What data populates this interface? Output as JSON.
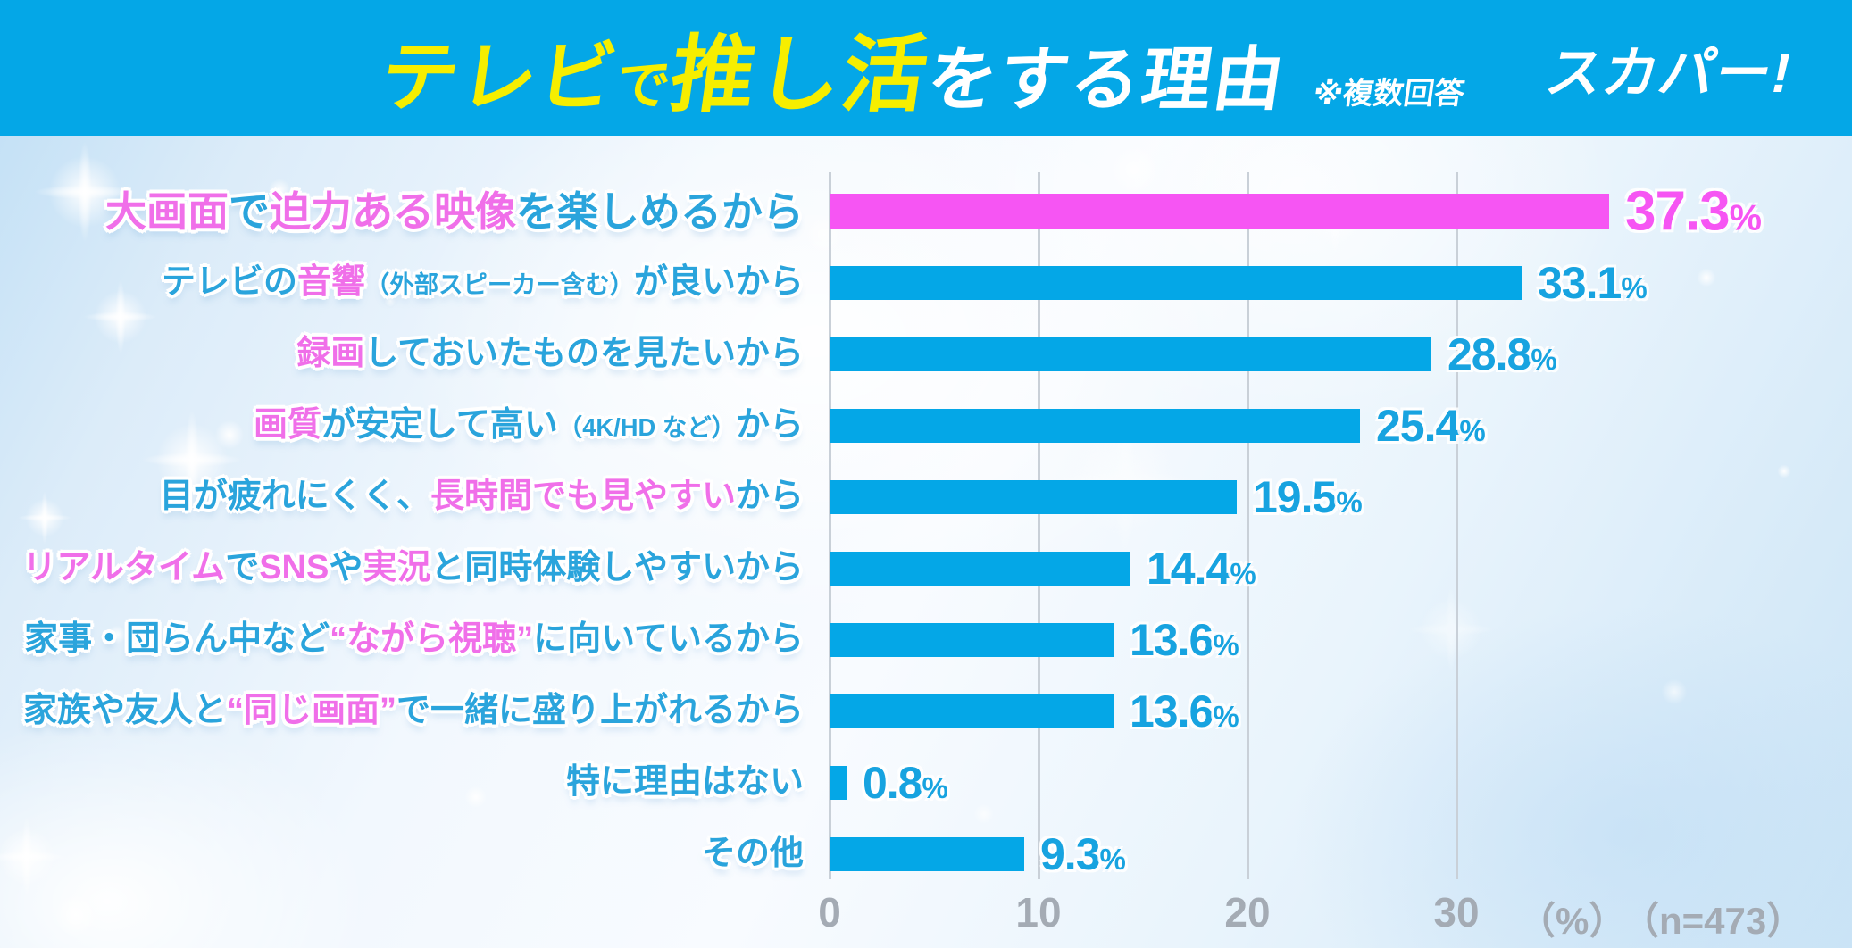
{
  "header": {
    "title_tv": "テレビ",
    "title_de": "で",
    "title_oshikatsu": "推し活",
    "title_rest": "をする理由",
    "note": "※複数回答",
    "logo": "スカパー!",
    "bg_color": "#04a7e7",
    "highlight_color": "#f6ee00"
  },
  "chart_data": {
    "type": "bar",
    "orientation": "horizontal",
    "title": "テレビで推し活をする理由",
    "unit_label": "（%）",
    "sample_label": "（n=473）",
    "xlim": [
      0,
      40
    ],
    "tick_values": [
      0,
      10,
      20,
      30
    ],
    "tick_labels": [
      "0",
      "10",
      "20",
      "30"
    ],
    "grid": true,
    "bar_color": "#04a7e7",
    "top_bar_color": "#f655f3",
    "categories": [
      "大画面で迫力ある映像を楽しめるから",
      "テレビの音響（外部スピーカー含む）が良いから",
      "録画しておいたものを見たいから",
      "画質が安定して高い（4K/HDなど）から",
      "目が疲れにくく、長時間でも見やすいから",
      "リアルタイムでSNSや実況と同時体験しやすいから",
      "家事・団らん中など“ながら視聴”に向いているから",
      "家族や友人と“同じ画面”で一緒に盛り上がれるから",
      "特に理由はない",
      "その他"
    ],
    "values": [
      37.3,
      33.1,
      28.8,
      25.4,
      19.5,
      14.4,
      13.6,
      13.6,
      0.8,
      9.3
    ],
    "rows": [
      {
        "highlight": true,
        "value": 37.3,
        "value_text": "37.3",
        "pct": "%",
        "segments": [
          {
            "text": "大画面",
            "pink": true
          },
          {
            "text": "で"
          },
          {
            "text": "迫力ある映像",
            "pink": true
          },
          {
            "text": "を楽しめるから"
          }
        ]
      },
      {
        "highlight": false,
        "value": 33.1,
        "value_text": "33.1",
        "pct": "%",
        "segments": [
          {
            "text": "テレビの"
          },
          {
            "text": "音響",
            "pink": true
          },
          {
            "text": "（外部スピーカー含む）",
            "small": true
          },
          {
            "text": "が良いから"
          }
        ]
      },
      {
        "highlight": false,
        "value": 28.8,
        "value_text": "28.8",
        "pct": "%",
        "segments": [
          {
            "text": "録画",
            "pink": true
          },
          {
            "text": "しておいたものを見たいから"
          }
        ]
      },
      {
        "highlight": false,
        "value": 25.4,
        "value_text": "25.4",
        "pct": "%",
        "segments": [
          {
            "text": "画質",
            "pink": true
          },
          {
            "text": "が安定して高い"
          },
          {
            "text": "（4K/HD など）",
            "small": true
          },
          {
            "text": "から"
          }
        ]
      },
      {
        "highlight": false,
        "value": 19.5,
        "value_text": "19.5",
        "pct": "%",
        "segments": [
          {
            "text": "目が疲れにくく、"
          },
          {
            "text": "長時間でも見やすい",
            "pink": true
          },
          {
            "text": "から"
          }
        ]
      },
      {
        "highlight": false,
        "value": 14.4,
        "value_text": "14.4",
        "pct": "%",
        "segments": [
          {
            "text": "リアルタイム",
            "pink": true
          },
          {
            "text": "で"
          },
          {
            "text": "SNS",
            "pink": true
          },
          {
            "text": "や"
          },
          {
            "text": "実況",
            "pink": true
          },
          {
            "text": "と同時体験しやすいから"
          }
        ]
      },
      {
        "highlight": false,
        "value": 13.6,
        "value_text": "13.6",
        "pct": "%",
        "segments": [
          {
            "text": "家事・団らん中など"
          },
          {
            "text": "“ながら視聴”",
            "pink": true
          },
          {
            "text": "に向いているから"
          }
        ]
      },
      {
        "highlight": false,
        "value": 13.6,
        "value_text": "13.6",
        "pct": "%",
        "segments": [
          {
            "text": "家族や友人と"
          },
          {
            "text": "“同じ画面”",
            "pink": true
          },
          {
            "text": "で一緒に盛り上がれるから"
          }
        ]
      },
      {
        "highlight": false,
        "value": 0.8,
        "value_text": "0.8",
        "pct": "%",
        "segments": [
          {
            "text": "特に理由はない"
          }
        ]
      },
      {
        "highlight": false,
        "value": 9.3,
        "value_text": "9.3",
        "pct": "%",
        "segments": [
          {
            "text": "その他"
          }
        ]
      }
    ]
  }
}
